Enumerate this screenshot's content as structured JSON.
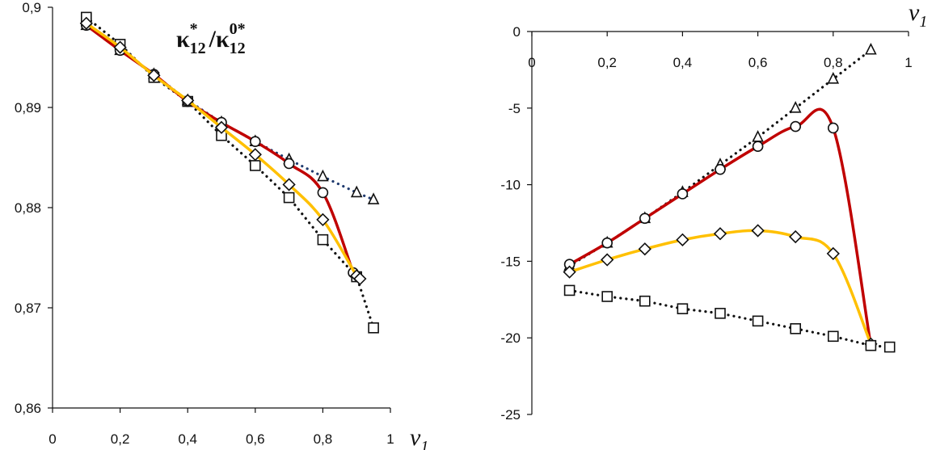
{
  "chart_data": [
    {
      "type": "line",
      "title": {
        "base1": "κ",
        "sub1": "12",
        "sup1": "*",
        "slash": "/",
        "base2": "κ",
        "sub2": "12",
        "sup2": "0*"
      },
      "xlabel": {
        "var": "v",
        "sub": "1"
      },
      "xlim": [
        0,
        1
      ],
      "ylim": [
        0.86,
        0.9
      ],
      "xticks": [
        0,
        0.2,
        0.4,
        0.6,
        0.8,
        1
      ],
      "xtick_labels": [
        "0",
        "0,2",
        "0,4",
        "0,6",
        "0,8",
        "1"
      ],
      "yticks": [
        0.86,
        0.87,
        0.88,
        0.89,
        0.9
      ],
      "ytick_labels": [
        "0,86",
        "0,87",
        "0,88",
        "0,89",
        "0,9"
      ],
      "series": [
        {
          "name": "triangle",
          "marker": "triangle",
          "line": "dotted",
          "color": "#1f3a6e",
          "x": [
            0.1,
            0.2,
            0.3,
            0.4,
            0.5,
            0.6,
            0.7,
            0.8,
            0.9,
            0.95
          ],
          "y": [
            0.8982,
            0.8957,
            0.8933,
            0.8907,
            0.8885,
            0.8866,
            0.8848,
            0.8831,
            0.8815,
            0.8808
          ]
        },
        {
          "name": "square",
          "marker": "square",
          "line": "dotted",
          "color": "#111111",
          "x": [
            0.1,
            0.2,
            0.3,
            0.4,
            0.5,
            0.6,
            0.7,
            0.8,
            0.9,
            0.95
          ],
          "y": [
            0.899,
            0.8963,
            0.893,
            0.8906,
            0.8872,
            0.8842,
            0.881,
            0.8768,
            0.8731,
            0.868
          ]
        },
        {
          "name": "circle",
          "marker": "circle",
          "line": "solid",
          "color": "#c00000",
          "x": [
            0.1,
            0.2,
            0.3,
            0.4,
            0.5,
            0.6,
            0.7,
            0.8,
            0.89
          ],
          "y": [
            0.8982,
            0.8957,
            0.8933,
            0.8906,
            0.8885,
            0.8866,
            0.8844,
            0.8815,
            0.8735
          ]
        },
        {
          "name": "diamond",
          "marker": "diamond",
          "line": "solid",
          "color": "#ffc000",
          "x": [
            0.1,
            0.2,
            0.3,
            0.4,
            0.5,
            0.6,
            0.7,
            0.8,
            0.9,
            0.91
          ],
          "y": [
            0.8984,
            0.896,
            0.8932,
            0.8907,
            0.888,
            0.8853,
            0.8823,
            0.8788,
            0.8732,
            0.8729
          ]
        }
      ]
    },
    {
      "type": "line",
      "xlabel": {
        "var": "v",
        "sub": "1"
      },
      "xlim": [
        0,
        1
      ],
      "ylim": [
        -25,
        0
      ],
      "xticks": [
        0,
        0.2,
        0.4,
        0.6,
        0.8,
        1
      ],
      "xtick_labels": [
        "0",
        "0,2",
        "0,4",
        "0,6",
        "0,8",
        "1"
      ],
      "yticks": [
        0,
        -5,
        -10,
        -15,
        -20,
        -25
      ],
      "ytick_labels": [
        "0",
        "-5",
        "-10",
        "-15",
        "-20",
        "-25"
      ],
      "series": [
        {
          "name": "triangle",
          "marker": "triangle",
          "line": "dotted",
          "color": "#111111",
          "x": [
            0.1,
            0.2,
            0.3,
            0.4,
            0.5,
            0.6,
            0.7,
            0.8,
            0.9
          ],
          "y": [
            -15.3,
            -13.8,
            -12.2,
            -10.5,
            -8.7,
            -6.9,
            -5.0,
            -3.1,
            -1.2
          ]
        },
        {
          "name": "circle",
          "marker": "circle",
          "line": "solid",
          "color": "#c00000",
          "x": [
            0.1,
            0.2,
            0.3,
            0.4,
            0.5,
            0.6,
            0.7,
            0.8,
            0.9
          ],
          "y": [
            -15.2,
            -13.8,
            -12.2,
            -10.6,
            -9.0,
            -7.5,
            -6.2,
            -6.3,
            -20.5
          ]
        },
        {
          "name": "diamond",
          "marker": "diamond",
          "line": "solid",
          "color": "#ffc000",
          "x": [
            0.1,
            0.2,
            0.3,
            0.4,
            0.5,
            0.6,
            0.7,
            0.8,
            0.9
          ],
          "y": [
            -15.7,
            -14.9,
            -14.2,
            -13.6,
            -13.2,
            -13.0,
            -13.4,
            -14.5,
            -20.4
          ]
        },
        {
          "name": "square",
          "marker": "square",
          "line": "dotted",
          "color": "#111111",
          "x": [
            0.1,
            0.2,
            0.3,
            0.4,
            0.5,
            0.6,
            0.7,
            0.8,
            0.9,
            0.95
          ],
          "y": [
            -16.9,
            -17.3,
            -17.6,
            -18.1,
            -18.4,
            -18.9,
            -19.4,
            -19.9,
            -20.5,
            -20.6
          ]
        }
      ]
    }
  ]
}
